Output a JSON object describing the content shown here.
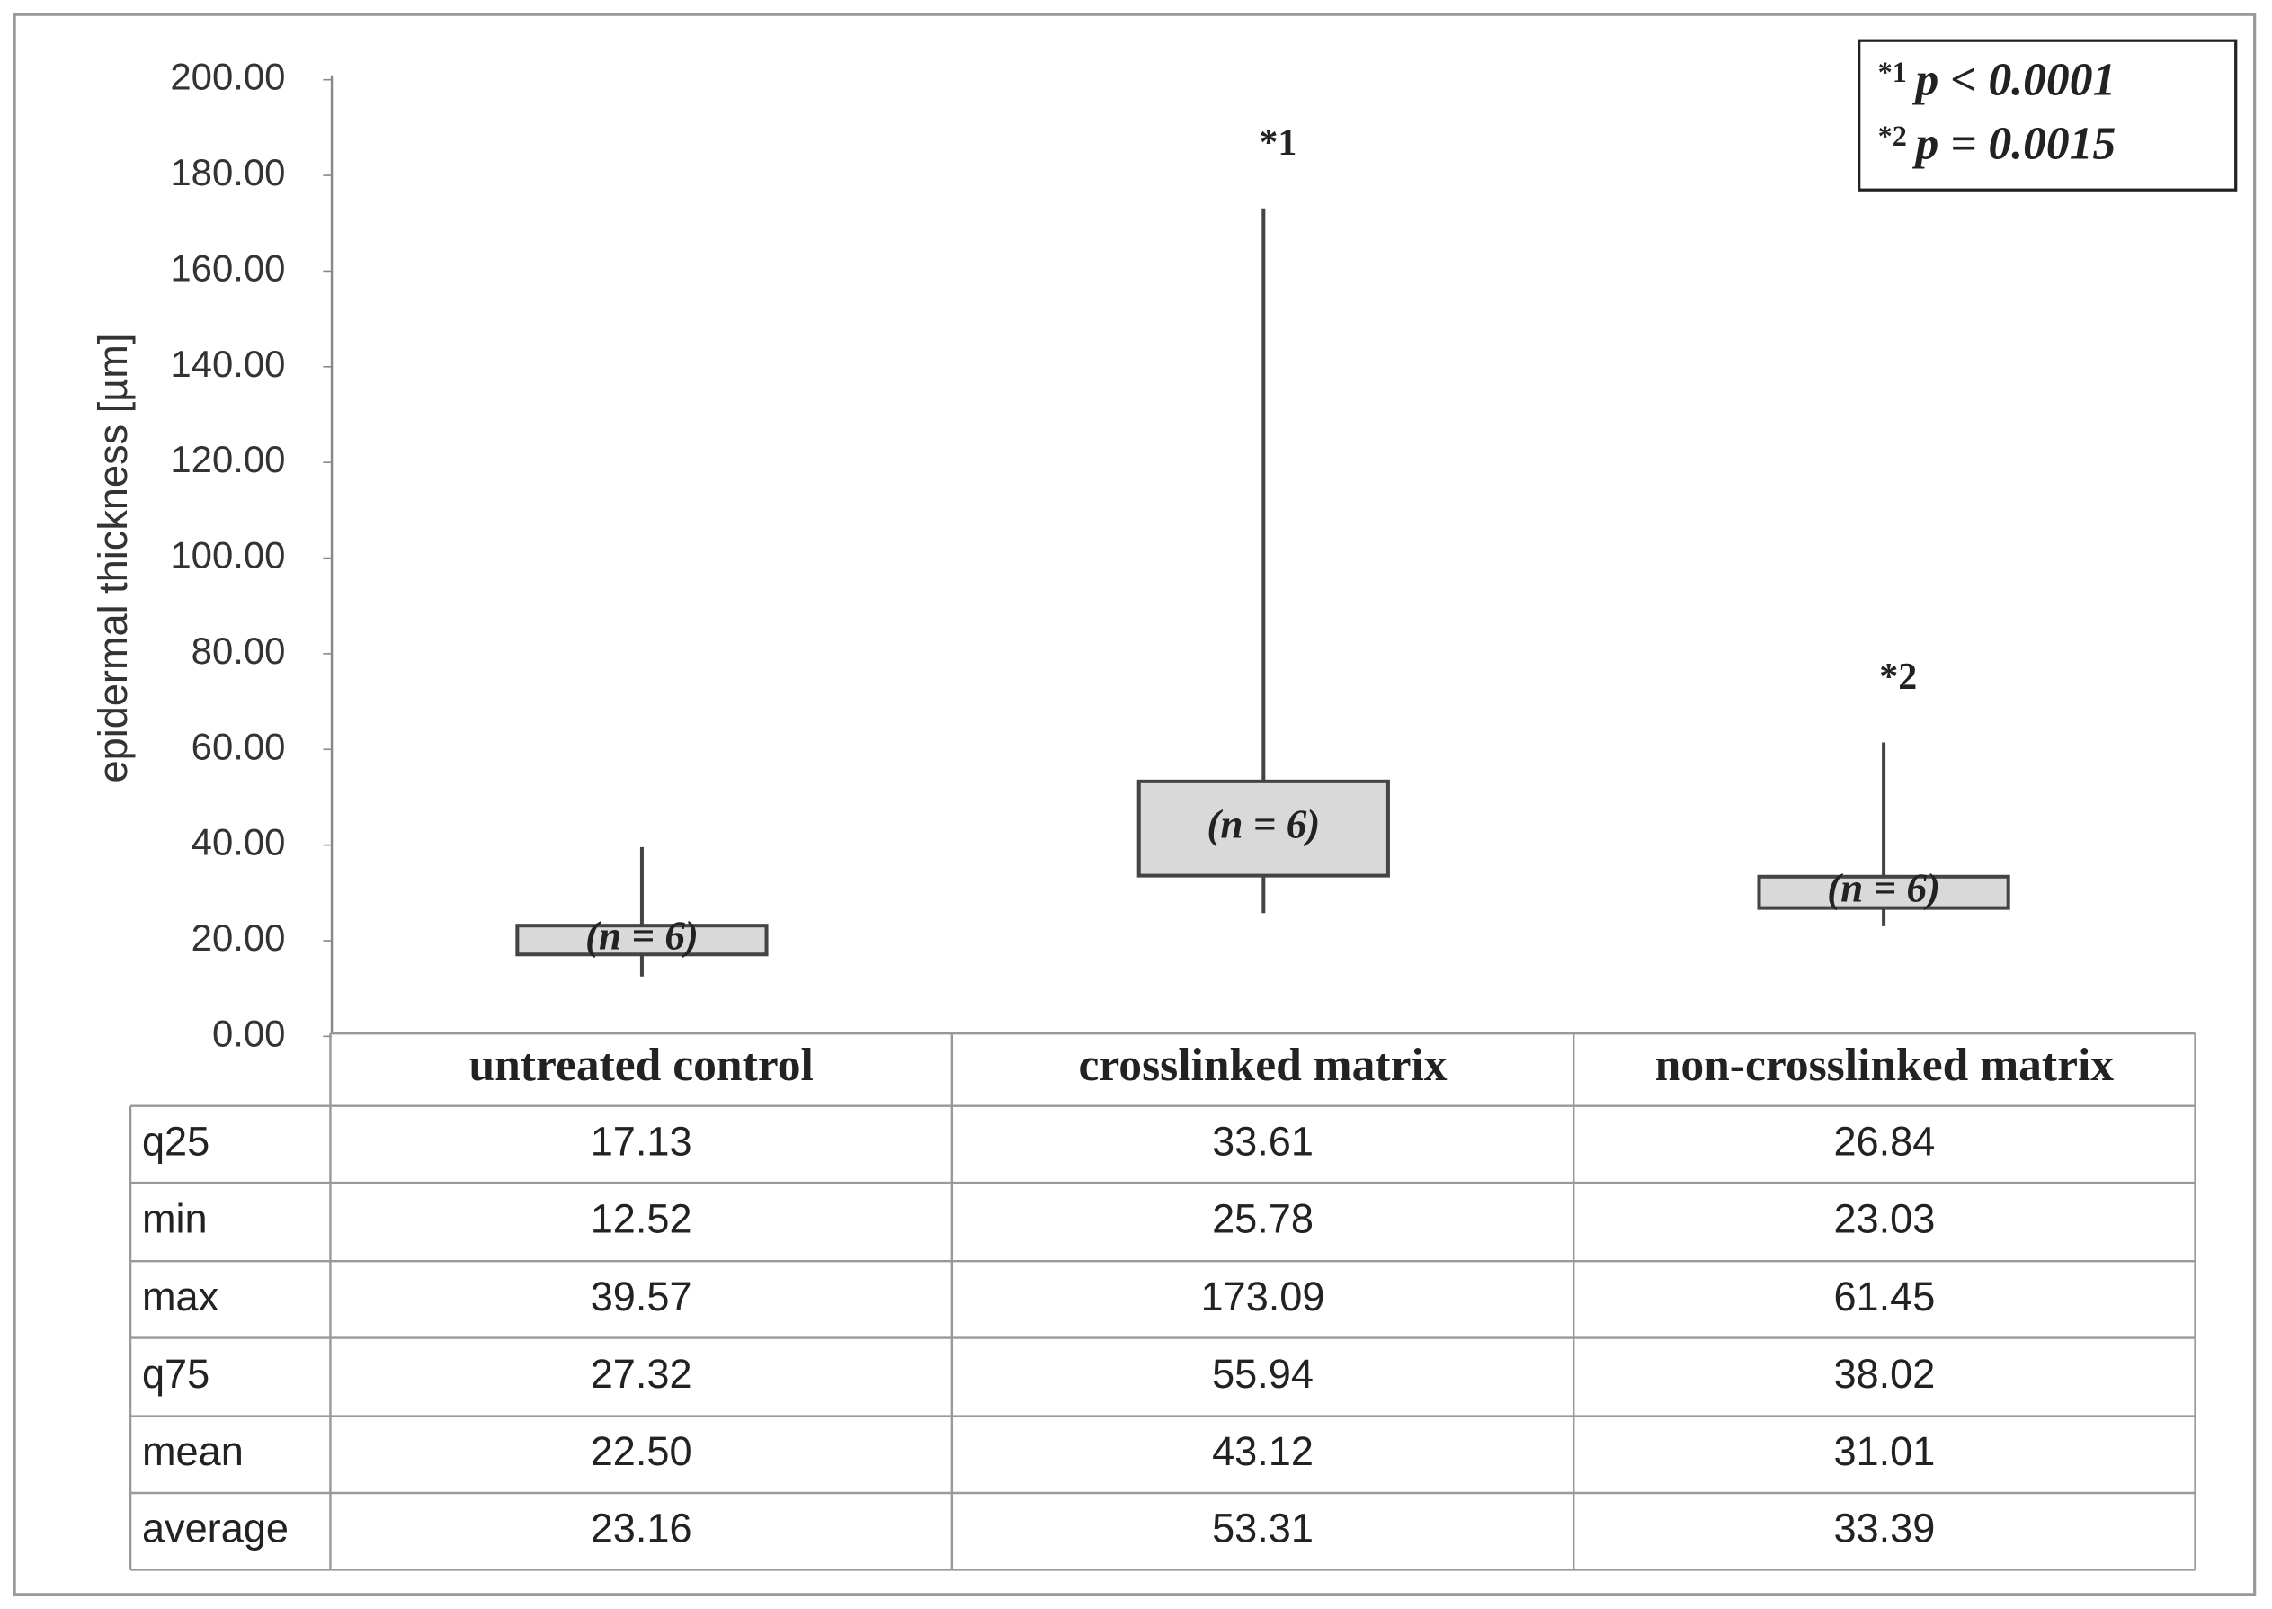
{
  "chart_data": {
    "type": "box",
    "y_label": "epidermal thickness [µm]",
    "ylim": [
      0,
      200
    ],
    "yticks": [
      {
        "value": 0,
        "label": "0.00"
      },
      {
        "value": 20,
        "label": "20.00"
      },
      {
        "value": 40,
        "label": "40.00"
      },
      {
        "value": 60,
        "label": "60.00"
      },
      {
        "value": 80,
        "label": "80.00"
      },
      {
        "value": 100,
        "label": "100.00"
      },
      {
        "value": 120,
        "label": "120.00"
      },
      {
        "value": 140,
        "label": "140.00"
      },
      {
        "value": 160,
        "label": "160.00"
      },
      {
        "value": 180,
        "label": "180.00"
      },
      {
        "value": 200,
        "label": "200.00"
      }
    ],
    "categories": [
      "untreated control",
      "crosslinked matrix",
      "non-crosslinked matrix"
    ],
    "box_labels": [
      "(n = 6)",
      "(n = 6)",
      "(n = 6)"
    ],
    "significance_marks": [
      null,
      "*1",
      "*2"
    ],
    "color": "#d9d9d9",
    "legend": [
      {
        "mark": "*1",
        "text": "p < 0.0001"
      },
      {
        "mark": "*2",
        "text": "p = 0.0015"
      }
    ],
    "table": {
      "rows": [
        {
          "name": "q25",
          "values": [
            17.13,
            33.61,
            26.84
          ]
        },
        {
          "name": "min",
          "values": [
            12.52,
            25.78,
            23.03
          ]
        },
        {
          "name": "max",
          "values": [
            39.57,
            173.09,
            61.45
          ]
        },
        {
          "name": "q75",
          "values": [
            27.32,
            55.94,
            38.02
          ]
        },
        {
          "name": "mean",
          "values": [
            22.5,
            43.12,
            31.01
          ],
          "value_labels": [
            "22.50",
            "43.12",
            "31.01"
          ]
        },
        {
          "name": "average",
          "values": [
            23.16,
            53.31,
            33.39
          ]
        }
      ]
    }
  }
}
